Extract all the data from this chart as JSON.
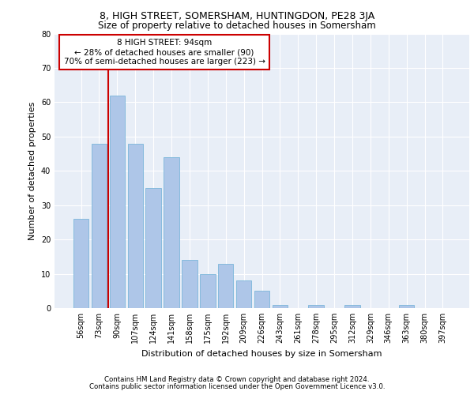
{
  "title1": "8, HIGH STREET, SOMERSHAM, HUNTINGDON, PE28 3JA",
  "title2": "Size of property relative to detached houses in Somersham",
  "xlabel": "Distribution of detached houses by size in Somersham",
  "ylabel": "Number of detached properties",
  "categories": [
    "56sqm",
    "73sqm",
    "90sqm",
    "107sqm",
    "124sqm",
    "141sqm",
    "158sqm",
    "175sqm",
    "192sqm",
    "209sqm",
    "226sqm",
    "243sqm",
    "261sqm",
    "278sqm",
    "295sqm",
    "312sqm",
    "329sqm",
    "346sqm",
    "363sqm",
    "380sqm",
    "397sqm"
  ],
  "values": [
    26,
    48,
    62,
    48,
    35,
    44,
    14,
    10,
    13,
    8,
    5,
    1,
    0,
    1,
    0,
    1,
    0,
    0,
    1,
    0,
    0
  ],
  "bar_color": "#aec6e8",
  "bar_edge_color": "#6aaed6",
  "vline_index": 2,
  "vline_color": "#cc0000",
  "annotation_text": "8 HIGH STREET: 94sqm\n← 28% of detached houses are smaller (90)\n70% of semi-detached houses are larger (223) →",
  "annotation_box_color": "#ffffff",
  "annotation_box_edge": "#cc0000",
  "ylim": [
    0,
    80
  ],
  "yticks": [
    0,
    10,
    20,
    30,
    40,
    50,
    60,
    70,
    80
  ],
  "bg_color": "#e8eef7",
  "footer1": "Contains HM Land Registry data © Crown copyright and database right 2024.",
  "footer2": "Contains public sector information licensed under the Open Government Licence v3.0."
}
